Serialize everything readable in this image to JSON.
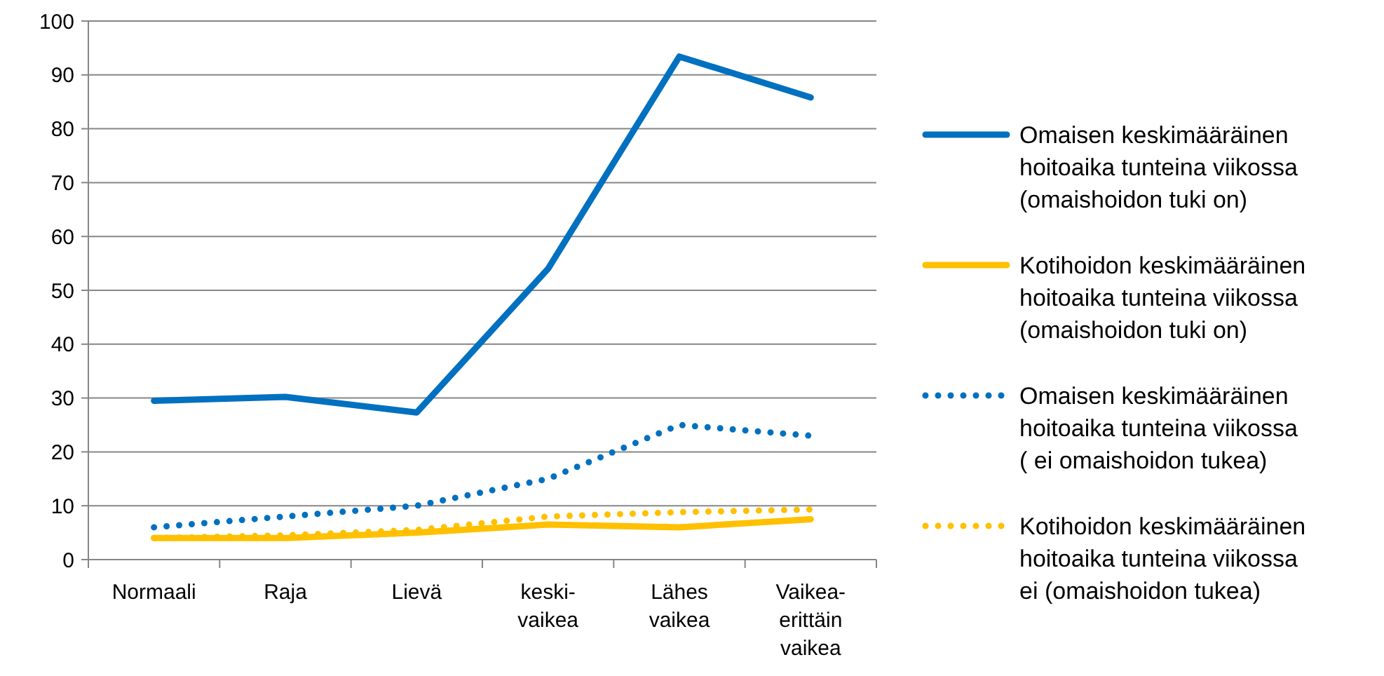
{
  "chart_data": {
    "type": "line",
    "categories": [
      "Normaali",
      "Raja",
      "Lievä",
      "keski-vaikea",
      "Lähes vaikea",
      "Vaikea-erittäin vaikea"
    ],
    "ylim": [
      0,
      100
    ],
    "yticks": [
      0,
      10,
      20,
      30,
      40,
      50,
      60,
      70,
      80,
      90,
      100
    ],
    "grid": "y",
    "legend": "right",
    "series": [
      {
        "name": "Omaisen keskimääräinen hoitoaika tunteina viikossa (omaishoidon tuki on)",
        "color": "#0070c0",
        "line_style": "solid",
        "values": [
          29.5,
          30.2,
          27.3,
          54,
          93.4,
          85.8
        ]
      },
      {
        "name": "Kotihoidon keskimääräinen hoitoaika tunteina viikossa (omaishoidon tuki on)",
        "color": "#ffc000",
        "line_style": "solid",
        "values": [
          4,
          4,
          5,
          6.5,
          6,
          7.5
        ]
      },
      {
        "name": "Omaisen keskimääräinen hoitoaika tunteina viikossa ( ei omaishoidon tukea)",
        "color": "#0070c0",
        "line_style": "dotted",
        "values": [
          6,
          8,
          10,
          15,
          25,
          23
        ]
      },
      {
        "name": "Kotihoidon keskimääräinen hoitoaika tunteina viikossa ei (omaishoidon tukea)",
        "color": "#ffc000",
        "line_style": "dotted",
        "values": [
          4,
          4.5,
          5.5,
          8,
          8.8,
          9.3
        ]
      }
    ]
  }
}
